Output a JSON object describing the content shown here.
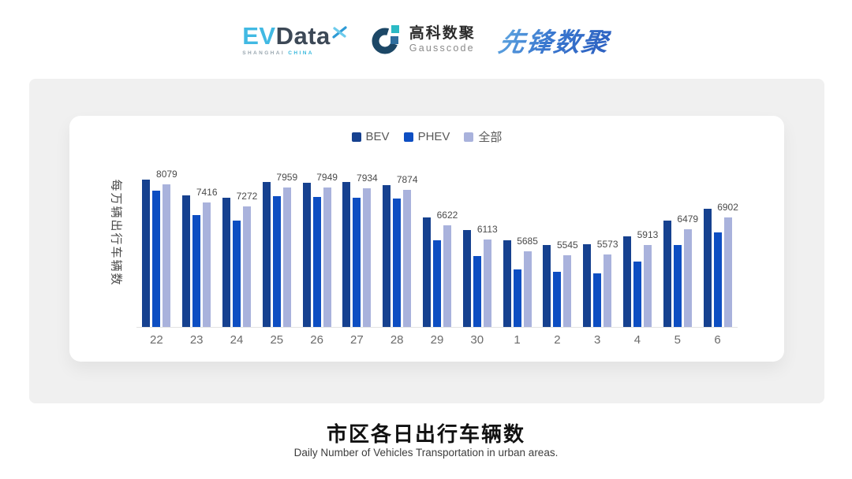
{
  "header": {
    "evdata": {
      "ev": "EV",
      "data": "Data",
      "tagline_left": "SHANGHAI",
      "tagline_right": "CHINA"
    },
    "gausscode": {
      "name_cn": "高科数聚",
      "name_en": "Gausscode"
    },
    "pioneer": {
      "name": "先锋数聚"
    }
  },
  "chart_data": {
    "type": "bar",
    "legend_position": "top",
    "grid": false,
    "ylabel": "每万辆出行车辆数",
    "ylim": [
      3000,
      8600
    ],
    "categories": [
      "22",
      "23",
      "24",
      "25",
      "26",
      "27",
      "28",
      "29",
      "30",
      "1",
      "2",
      "3",
      "4",
      "5",
      "6"
    ],
    "series": [
      {
        "name": "BEV",
        "key": "bev",
        "color": "#16418F",
        "values": [
          8232,
          7672,
          7594,
          8163,
          8114,
          8141,
          8035,
          6899,
          6444,
          6070,
          5903,
          5931,
          6228,
          6794,
          7214
        ]
      },
      {
        "name": "PHEV",
        "key": "phev",
        "color": "#0D4EC2",
        "values": [
          7856,
          6976,
          6788,
          7640,
          7608,
          7603,
          7559,
          6084,
          5510,
          5056,
          4953,
          4917,
          5329,
          5922,
          6372
        ]
      },
      {
        "name": "全部",
        "key": "all",
        "color": "#A9B2DC",
        "values": [
          8079,
          7416,
          7272,
          7959,
          7949,
          7934,
          7874,
          6622,
          6113,
          5685,
          5545,
          5573,
          5913,
          6479,
          6902
        ]
      }
    ],
    "value_labels": [
      8079,
      7416,
      7272,
      7959,
      7949,
      7934,
      7874,
      6622,
      6113,
      5685,
      5545,
      5573,
      5913,
      6479,
      6902
    ],
    "value_labels_series": "全部"
  },
  "colors": {
    "panel_bg": "#F0F0F0",
    "card_bg": "#FFFFFF",
    "axis_line": "#E3E3E3",
    "evdata_cyan": "#41B9E3",
    "evdata_dark": "#3C4856",
    "gauss_navy": "#1C4766",
    "gauss_teal": "#2BBAC5",
    "pioneer_blue": "#3A78CF"
  },
  "footer": {
    "title": "市区各日出行车辆数",
    "subtitle": "Daily Number of Vehicles Transportation in urban areas."
  }
}
